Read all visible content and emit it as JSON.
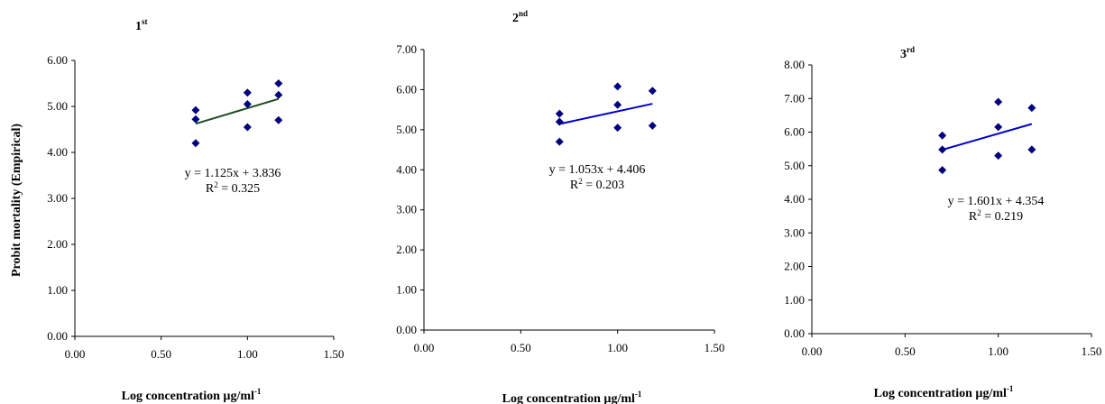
{
  "chart_data": [
    {
      "type": "scatter",
      "title": "1",
      "title_sup": "st",
      "xlabel": "Log concentration µg/ml",
      "xlabel_sup": "-1",
      "ylabel": "Probit mortality (Empirical)",
      "xlim": [
        0,
        1.5
      ],
      "ylim": [
        0,
        6
      ],
      "x_ticks": [
        "0.00",
        "0.50",
        "1.00",
        "1.50"
      ],
      "y_ticks": [
        "0.00",
        "1.00",
        "2.00",
        "3.00",
        "4.00",
        "5.00",
        "6.00"
      ],
      "x": [
        0.7,
        0.7,
        0.7,
        1.0,
        1.0,
        1.0,
        1.18,
        1.18,
        1.18
      ],
      "y": [
        4.92,
        4.72,
        4.2,
        5.3,
        5.05,
        4.55,
        5.5,
        5.25,
        4.7
      ],
      "marker_color": "#000080",
      "trendline": {
        "slope": 1.125,
        "intercept": 3.836,
        "x_range": [
          0.7,
          1.18
        ],
        "color": "#1f4d1f"
      },
      "equation": "y = 1.125x + 3.836",
      "r2_label": "R",
      "r2_sup": "2",
      "r2_value": " = 0.325"
    },
    {
      "type": "scatter",
      "title": "2",
      "title_sup": "nd",
      "xlabel": "Log concentration µg/ml",
      "xlabel_sup": "-1",
      "ylabel": "",
      "xlim": [
        0,
        1.5
      ],
      "ylim": [
        0,
        7
      ],
      "x_ticks": [
        "0.00",
        "0.50",
        "1.00",
        "1.50"
      ],
      "y_ticks": [
        "0.00",
        "1.00",
        "2.00",
        "3.00",
        "4.00",
        "5.00",
        "6.00",
        "7.00"
      ],
      "x": [
        0.7,
        0.7,
        0.7,
        1.0,
        1.0,
        1.0,
        1.18,
        1.18
      ],
      "y": [
        5.4,
        5.2,
        4.7,
        6.08,
        5.62,
        5.05,
        5.97,
        5.1
      ],
      "marker_color": "#000080",
      "trendline": {
        "slope": 1.053,
        "intercept": 4.406,
        "x_range": [
          0.7,
          1.18
        ],
        "color": "#0000cc"
      },
      "equation": "y = 1.053x + 4.406",
      "r2_label": "R",
      "r2_sup": "2",
      "r2_value": " = 0.203"
    },
    {
      "type": "scatter",
      "title": "3",
      "title_sup": "rd",
      "xlabel": "Log concentration µg/ml",
      "xlabel_sup": "-1",
      "ylabel": "",
      "xlim": [
        0,
        1.5
      ],
      "ylim": [
        0,
        8
      ],
      "x_ticks": [
        "0.00",
        "0.50",
        "1.00",
        "1.50"
      ],
      "y_ticks": [
        "0.00",
        "1.00",
        "2.00",
        "3.00",
        "4.00",
        "5.00",
        "6.00",
        "7.00",
        "8.00"
      ],
      "x": [
        0.7,
        0.7,
        0.7,
        1.0,
        1.0,
        1.0,
        1.18,
        1.18
      ],
      "y": [
        5.9,
        5.48,
        4.87,
        6.9,
        6.15,
        5.3,
        6.72,
        5.48
      ],
      "marker_color": "#000080",
      "trendline": {
        "slope": 1.601,
        "intercept": 4.354,
        "x_range": [
          0.7,
          1.18
        ],
        "color": "#0000cc"
      },
      "equation": "y = 1.601x + 4.354",
      "r2_label": "R",
      "r2_sup": "2",
      "r2_value": " = 0.219"
    }
  ]
}
